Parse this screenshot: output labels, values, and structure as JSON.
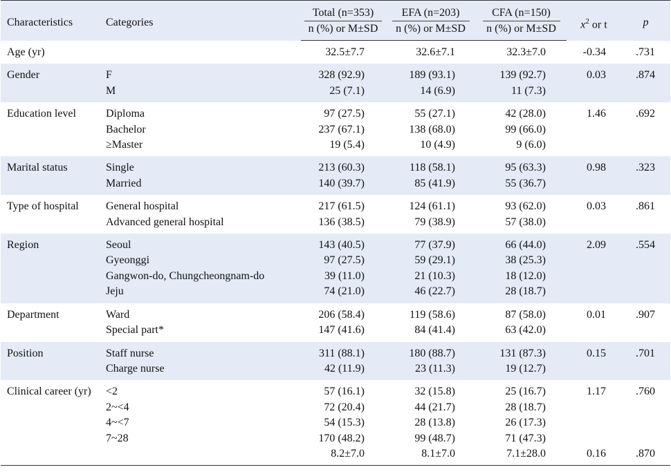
{
  "table": {
    "headers": {
      "characteristics": "Characteristics",
      "categories": "Categories",
      "total": "Total (n=353)",
      "efa": "EFA (n=203)",
      "cfa": "CFA (n=150)",
      "sub": "n (%) or M±SD",
      "stat": {
        "symbol": "x",
        "sup": "2",
        "rest": " or t"
      },
      "p": "p"
    },
    "groups": [
      {
        "characteristic": "Age (yr)",
        "rows": [
          {
            "category": "",
            "total": "32.5±7.7",
            "efa": "32.6±7.1",
            "cfa": "32.3±7.0",
            "stat": "-0.34",
            "p": ".731"
          }
        ]
      },
      {
        "characteristic": "Gender",
        "rows": [
          {
            "category": "F",
            "total": "328 (92.9)",
            "efa": "189 (93.1)",
            "cfa": "139 (92.7)",
            "stat": "0.03",
            "p": ".874"
          },
          {
            "category": "M",
            "total": "25 (7.1)",
            "efa": "14 (6.9)",
            "cfa": "11 (7.3)"
          }
        ]
      },
      {
        "characteristic": "Education level",
        "rows": [
          {
            "category": "Diploma",
            "total": "97 (27.5)",
            "efa": "55 (27.1)",
            "cfa": "42 (28.0)",
            "stat": "1.46",
            "p": ".692"
          },
          {
            "category": "Bachelor",
            "total": "237 (67.1)",
            "efa": "138 (68.0)",
            "cfa": "99 (66.0)"
          },
          {
            "category": "≥Master",
            "total": "19 (5.4)",
            "efa": "10 (4.9)",
            "cfa": "9 (6.0)"
          }
        ]
      },
      {
        "characteristic": "Marital status",
        "rows": [
          {
            "category": "Single",
            "total": "213 (60.3)",
            "efa": "118 (58.1)",
            "cfa": "95 (63.3)",
            "stat": "0.98",
            "p": ".323"
          },
          {
            "category": "Married",
            "total": "140 (39.7)",
            "efa": "85 (41.9)",
            "cfa": "55 (36.7)"
          }
        ]
      },
      {
        "characteristic": "Type of hospital",
        "rows": [
          {
            "category": "General hospital",
            "total": "217 (61.5)",
            "efa": "124 (61.1)",
            "cfa": "93 (62.0)",
            "stat": "0.03",
            "p": ".861"
          },
          {
            "category": "Advanced general hospital",
            "total": "136 (38.5)",
            "efa": "79 (38.9)",
            "cfa": "57 (38.0)"
          }
        ]
      },
      {
        "characteristic": "Region",
        "rows": [
          {
            "category": "Seoul",
            "total": "143 (40.5)",
            "efa": "77 (37.9)",
            "cfa": "66 (44.0)",
            "stat": "2.09",
            "p": ".554"
          },
          {
            "category": "Gyeonggi",
            "total": "97 (27.5)",
            "efa": "59 (29.1)",
            "cfa": "38 (25.3)"
          },
          {
            "category": "Gangwon-do, Chungcheongnam-do",
            "total": "39 (11.0)",
            "efa": "21 (10.3)",
            "cfa": "18 (12.0)"
          },
          {
            "category": "Jeju",
            "total": "74 (21.0)",
            "efa": "46 (22.7)",
            "cfa": "28 (18.7)"
          }
        ]
      },
      {
        "characteristic": "Department",
        "rows": [
          {
            "category": "Ward",
            "total": "206 (58.4)",
            "efa": "119 (58.6)",
            "cfa": "87 (58.0)",
            "stat": "0.01",
            "p": ".907"
          },
          {
            "category": "Special part*",
            "total": "147 (41.6)",
            "efa": "84 (41.4)",
            "cfa": "63 (42.0)"
          }
        ]
      },
      {
        "characteristic": "Position",
        "rows": [
          {
            "category": "Staff nurse",
            "total": "311 (88.1)",
            "efa": "180 (88.7)",
            "cfa": "131 (87.3)",
            "stat": "0.15",
            "p": ".701"
          },
          {
            "category": "Charge nurse",
            "total": "42 (11.9)",
            "efa": "23 (11.3)",
            "cfa": "19 (12.7)"
          }
        ]
      },
      {
        "characteristic": "Clinical career (yr)",
        "rows": [
          {
            "category": "<2",
            "total": "57 (16.1)",
            "efa": "32 (15.8)",
            "cfa": "25 (16.7)",
            "stat": "1.17",
            "p": ".760"
          },
          {
            "category": "2~<4",
            "total": "72 (20.4)",
            "efa": "44 (21.7)",
            "cfa": "28 (18.7)"
          },
          {
            "category": "4~<7",
            "total": "54 (15.3)",
            "efa": "28 (13.8)",
            "cfa": "26 (17.3)"
          },
          {
            "category": "7~28",
            "total": "170 (48.2)",
            "efa": "99 (48.7)",
            "cfa": "71 (47.3)"
          },
          {
            "category": "",
            "total": "8.2±7.0",
            "efa": "8.1±7.0",
            "cfa": "7.1±28.0",
            "stat": "0.16",
            "p": ".870"
          }
        ]
      }
    ]
  }
}
